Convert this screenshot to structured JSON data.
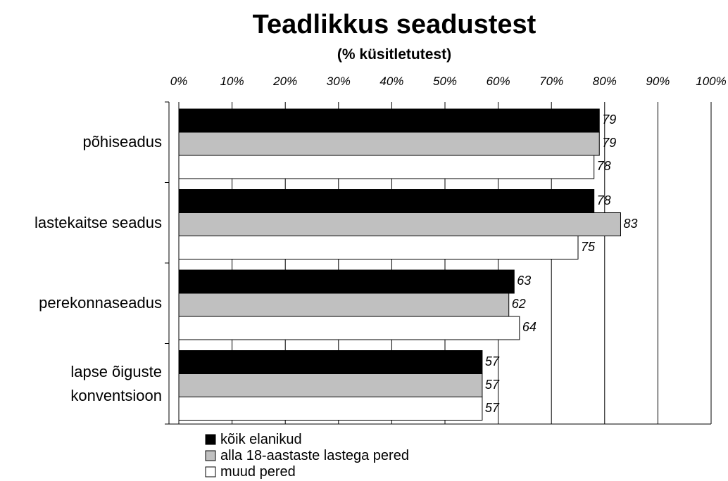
{
  "chart_data": {
    "type": "hbar",
    "title": "Teadlikkus seadustest",
    "subtitle": "(% küsitletutest)",
    "categories": [
      "põhiseadus",
      "lastekaitse seadus",
      "perekonnaseadus",
      "lapse õiguste konventsioon"
    ],
    "series": [
      {
        "name": "kõik elanikud",
        "color": "#000000",
        "values": [
          79,
          78,
          63,
          57
        ]
      },
      {
        "name": "alla 18-aastaste lastega pered",
        "color": "#c0c0c0",
        "values": [
          79,
          83,
          62,
          57
        ]
      },
      {
        "name": "muud pered",
        "color": "#ffffff",
        "values": [
          78,
          75,
          64,
          57
        ]
      }
    ],
    "xlim": [
      0,
      100
    ],
    "xticks": [
      {
        "value": 0,
        "label": "0%"
      },
      {
        "value": 10,
        "label": "10%"
      },
      {
        "value": 20,
        "label": "20%"
      },
      {
        "value": 30,
        "label": "30%"
      },
      {
        "value": 40,
        "label": "40%"
      },
      {
        "value": 50,
        "label": "50%"
      },
      {
        "value": 60,
        "label": "60%"
      },
      {
        "value": 70,
        "label": "70%"
      },
      {
        "value": 80,
        "label": "80%"
      },
      {
        "value": 90,
        "label": "90%"
      },
      {
        "value": 100,
        "label": "100%"
      }
    ],
    "grid": true,
    "legend": "bottom-left"
  }
}
